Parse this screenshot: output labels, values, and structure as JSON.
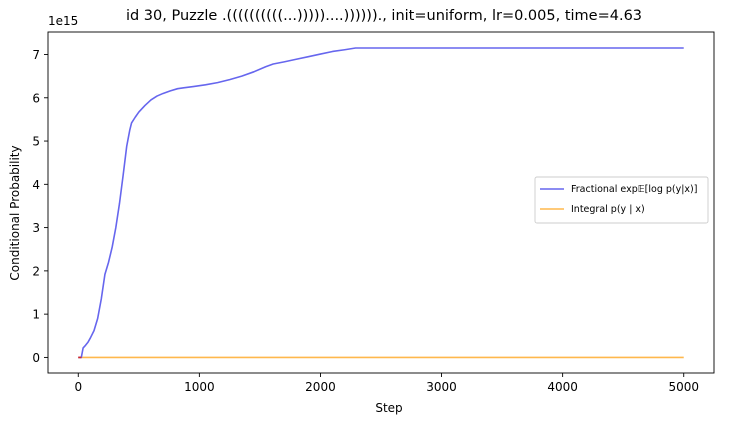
{
  "chart_data": {
    "type": "line",
    "title": "id 30, Puzzle .((((((((((...)))))....)))))).,  init=uniform, lr=0.005, time=4.63",
    "xlabel": "Step",
    "ylabel": "Conditional Probability",
    "offset_label": "1e15",
    "xlim": [
      -250,
      5250
    ],
    "ylim": [
      -0.36,
      7.52
    ],
    "y_scale_factor": 1000000000000000.0,
    "x_ticks": [
      0,
      1000,
      2000,
      3000,
      4000,
      5000
    ],
    "x_tick_labels": [
      "0",
      "1000",
      "2000",
      "3000",
      "4000",
      "5000"
    ],
    "y_ticks": [
      0,
      1,
      2,
      3,
      4,
      5,
      6,
      7
    ],
    "y_tick_labels": [
      "0",
      "1",
      "2",
      "3",
      "4",
      "5",
      "6",
      "7"
    ],
    "grid": false,
    "legend_position": "center-right",
    "series": [
      {
        "name": "Fractional exp𝔼[log p(y|x)]",
        "color": "#6666ee",
        "points": [
          [
            0,
            0.0
          ],
          [
            25,
            0.0
          ],
          [
            40,
            0.22
          ],
          [
            60,
            0.28
          ],
          [
            80,
            0.35
          ],
          [
            100,
            0.45
          ],
          [
            130,
            0.62
          ],
          [
            160,
            0.9
          ],
          [
            190,
            1.35
          ],
          [
            220,
            1.92
          ],
          [
            250,
            2.2
          ],
          [
            280,
            2.55
          ],
          [
            310,
            3.0
          ],
          [
            340,
            3.55
          ],
          [
            370,
            4.2
          ],
          [
            400,
            4.88
          ],
          [
            425,
            5.25
          ],
          [
            440,
            5.42
          ],
          [
            470,
            5.55
          ],
          [
            500,
            5.67
          ],
          [
            550,
            5.82
          ],
          [
            600,
            5.95
          ],
          [
            650,
            6.04
          ],
          [
            700,
            6.1
          ],
          [
            760,
            6.16
          ],
          [
            820,
            6.21
          ],
          [
            870,
            6.23
          ],
          [
            950,
            6.26
          ],
          [
            1050,
            6.3
          ],
          [
            1150,
            6.35
          ],
          [
            1250,
            6.42
          ],
          [
            1350,
            6.5
          ],
          [
            1450,
            6.6
          ],
          [
            1550,
            6.72
          ],
          [
            1610,
            6.78
          ],
          [
            1700,
            6.83
          ],
          [
            1800,
            6.89
          ],
          [
            1900,
            6.95
          ],
          [
            2000,
            7.01
          ],
          [
            2100,
            7.07
          ],
          [
            2200,
            7.11
          ],
          [
            2290,
            7.15
          ],
          [
            2500,
            7.15
          ],
          [
            3000,
            7.15
          ],
          [
            3500,
            7.15
          ],
          [
            4000,
            7.15
          ],
          [
            4500,
            7.15
          ],
          [
            5000,
            7.15
          ]
        ]
      },
      {
        "name": "Integral p(y | x)",
        "color": "#ffb84d",
        "points": [
          [
            0,
            0.0
          ],
          [
            5000,
            0.0
          ]
        ]
      }
    ],
    "red_segment_color": "#d62728",
    "red_segment_points": [
      [
        0,
        0.0
      ],
      [
        25,
        0.0
      ]
    ]
  }
}
